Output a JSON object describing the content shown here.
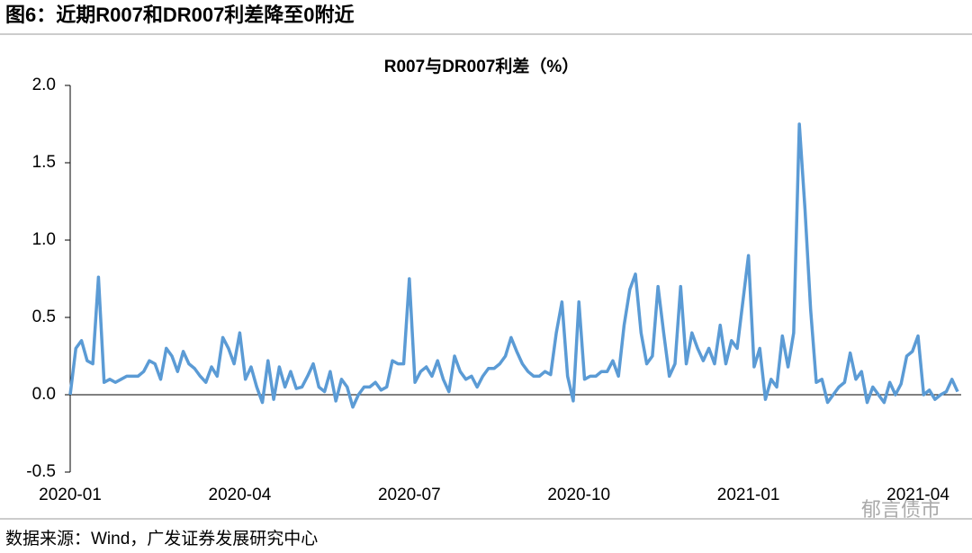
{
  "title": "图6：近期R007和DR007利差降至0附近",
  "source": "数据来源：Wind，广发证券发展研究中心",
  "watermark": "郁言债市",
  "chart_data": {
    "type": "line",
    "title": "R007与DR007利差（%）",
    "color": "#5b9bd5",
    "categories": [
      "2020-01",
      null,
      null,
      null,
      null,
      null,
      null,
      null,
      null,
      null,
      null,
      null,
      null,
      null,
      null,
      null,
      null,
      null,
      null,
      null,
      null,
      null,
      null,
      null,
      null,
      null,
      null,
      null,
      null,
      null,
      "2020-04",
      null,
      null,
      null,
      null,
      null,
      null,
      null,
      null,
      null,
      null,
      null,
      null,
      null,
      null,
      null,
      null,
      null,
      null,
      null,
      null,
      null,
      null,
      null,
      null,
      null,
      null,
      null,
      null,
      null,
      "2020-07",
      null,
      null,
      null,
      null,
      null,
      null,
      null,
      null,
      null,
      null,
      null,
      null,
      null,
      null,
      null,
      null,
      null,
      null,
      null,
      null,
      null,
      null,
      null,
      null,
      null,
      null,
      null,
      null,
      null,
      "2020-10",
      null,
      null,
      null,
      null,
      null,
      null,
      null,
      null,
      null,
      null,
      null,
      null,
      null,
      null,
      null,
      null,
      null,
      null,
      null,
      null,
      null,
      null,
      null,
      null,
      null,
      null,
      null,
      null,
      null,
      "2021-01",
      null,
      null,
      null,
      null,
      null,
      null,
      null,
      null,
      null,
      null,
      null,
      null,
      null,
      null,
      null,
      null,
      null,
      null,
      null,
      null,
      null,
      null,
      null,
      null,
      null,
      null,
      null,
      null,
      null,
      "2021-04",
      null,
      null,
      null,
      null,
      null,
      null,
      null
    ],
    "values": [
      0.0,
      0.3,
      0.35,
      0.22,
      0.2,
      0.76,
      0.08,
      0.1,
      0.08,
      0.1,
      0.12,
      0.12,
      0.12,
      0.15,
      0.22,
      0.2,
      0.1,
      0.3,
      0.25,
      0.15,
      0.28,
      0.2,
      0.17,
      0.12,
      0.08,
      0.18,
      0.12,
      0.37,
      0.3,
      0.2,
      0.4,
      0.1,
      0.18,
      0.05,
      -0.05,
      0.22,
      -0.03,
      0.18,
      0.05,
      0.15,
      0.04,
      0.05,
      0.12,
      0.2,
      0.05,
      0.02,
      0.15,
      -0.04,
      0.1,
      0.05,
      -0.08,
      0.0,
      0.05,
      0.05,
      0.08,
      0.03,
      0.05,
      0.22,
      0.2,
      0.2,
      0.75,
      0.08,
      0.15,
      0.18,
      0.12,
      0.22,
      0.1,
      0.02,
      0.25,
      0.15,
      0.1,
      0.12,
      0.05,
      0.12,
      0.17,
      0.17,
      0.2,
      0.25,
      0.37,
      0.28,
      0.2,
      0.15,
      0.12,
      0.12,
      0.15,
      0.13,
      0.4,
      0.6,
      0.12,
      -0.04,
      0.6,
      0.1,
      0.12,
      0.12,
      0.15,
      0.15,
      0.22,
      0.12,
      0.45,
      0.68,
      0.78,
      0.4,
      0.2,
      0.25,
      0.7,
      0.4,
      0.12,
      0.2,
      0.7,
      0.2,
      0.4,
      0.3,
      0.22,
      0.3,
      0.2,
      0.45,
      0.2,
      0.35,
      0.3,
      0.6,
      0.9,
      0.18,
      0.3,
      -0.03,
      0.1,
      0.05,
      0.38,
      0.18,
      0.4,
      1.75,
      1.2,
      0.55,
      0.08,
      0.1,
      -0.05,
      0.0,
      0.05,
      0.08,
      0.27,
      0.1,
      0.15,
      -0.05,
      0.05,
      0.0,
      -0.05,
      0.08,
      0.0,
      0.07,
      0.25,
      0.28,
      0.38,
      0.0,
      0.03,
      -0.03,
      0.0,
      0.02,
      0.1,
      0.02
    ],
    "ylim": [
      -0.5,
      2.0
    ],
    "yticks": [
      -0.5,
      {
        "value": 0,
        "label": "0.0"
      },
      0.5,
      {
        "value": 1,
        "label": "1.0"
      },
      1.5,
      {
        "value": 2,
        "label": "2.0"
      }
    ]
  }
}
